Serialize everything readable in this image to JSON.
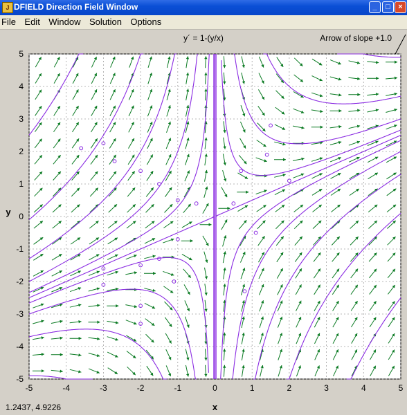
{
  "window": {
    "title": "DFIELD Direction Field Window",
    "buttons": {
      "minimize": "_",
      "maximize": "□",
      "close": "×"
    }
  },
  "menu": [
    "File",
    "Edit",
    "Window",
    "Solution",
    "Options"
  ],
  "equation": "y´ = 1-(y/x)",
  "arrow_label": "Arrow of slope +1.0",
  "axes": {
    "xlabel": "x",
    "ylabel": "y",
    "xticks": [
      "-5",
      "-4",
      "-3",
      "-2",
      "-1",
      "0",
      "1",
      "2",
      "3",
      "4",
      "5"
    ],
    "yticks": [
      "5",
      "4",
      "3",
      "2",
      "1",
      "0",
      "-1",
      "-2",
      "-3",
      "-4",
      "-5"
    ]
  },
  "cursor_coords": "1.2437,  4.9226",
  "colors": {
    "field_arrow": "#0a7a22",
    "solution": "#8a2be2",
    "grid": "#a0a0a0"
  },
  "chart_data": {
    "type": "direction-field",
    "xlim": [
      -5,
      5
    ],
    "ylim": [
      -5,
      5
    ],
    "grid": true,
    "solution_constants_C": [
      -80,
      -45,
      -25,
      -12,
      -6,
      -2.5,
      -0.8,
      0,
      0.8,
      2.5,
      6,
      12,
      25,
      45,
      80
    ]
  }
}
